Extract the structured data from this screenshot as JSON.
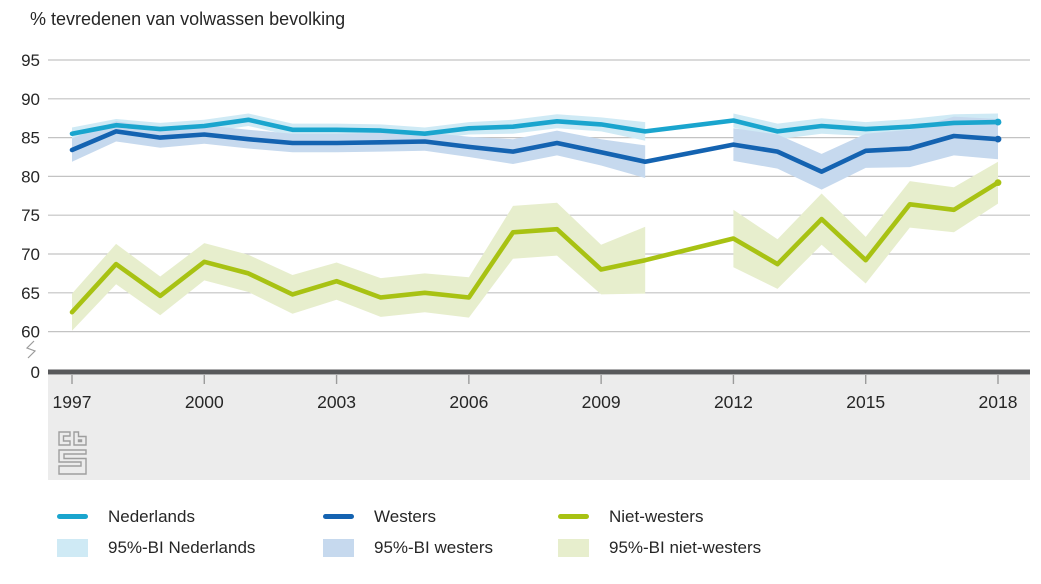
{
  "title": "% tevredenen van volwassen bevolking",
  "colors": {
    "background": "#ffffff",
    "text": "#262626",
    "gridline": "#c3c3c3",
    "baseline": "#58595b",
    "footer_band": "#ececec",
    "tick": "#9b9b9b",
    "logo_gray": "#9e9e9e"
  },
  "chart_data": {
    "type": "line",
    "title": "% tevredenen van volwassen bevolking",
    "x_years": [
      1997,
      1998,
      1999,
      2000,
      2001,
      2002,
      2003,
      2004,
      2005,
      2006,
      2007,
      2008,
      2009,
      2010,
      2012,
      2013,
      2014,
      2015,
      2016,
      2017,
      2018
    ],
    "x_note": "no observation for 2011: lines are interpolated and confidence bands are interrupted between 2010 and 2012",
    "x_tick_years": [
      1997,
      2000,
      2003,
      2006,
      2009,
      2012,
      2015,
      2018
    ],
    "x_tick_labels": [
      "1997",
      "2000",
      "2003",
      "2006",
      "2009",
      "2012",
      "2015",
      "2018"
    ],
    "y_ticks": [
      95,
      90,
      85,
      80,
      75,
      70,
      65,
      60
    ],
    "y_axis_break": true,
    "y_zero_label": "0",
    "ylim_visible": [
      60,
      95
    ],
    "grid": true,
    "legend_position": "bottom",
    "series": [
      {
        "name": "Nederlands",
        "color": "#1aa5ce",
        "band_name": "95%-BI Nederlands",
        "band_color": "#cfeaf5",
        "values": [
          85.5,
          86.6,
          86.1,
          86.5,
          87.3,
          86.0,
          86.0,
          85.9,
          85.5,
          86.2,
          86.4,
          87.1,
          86.7,
          85.8,
          87.2,
          85.8,
          86.5,
          86.1,
          86.4,
          86.9,
          87.0
        ],
        "ci_halfwidth": [
          0.8,
          0.8,
          0.8,
          0.8,
          0.8,
          0.8,
          0.8,
          0.8,
          0.8,
          0.8,
          0.9,
          0.9,
          0.9,
          1.2,
          0.9,
          1.0,
          1.0,
          0.9,
          1.0,
          1.1,
          1.1
        ]
      },
      {
        "name": "Westers",
        "color": "#1463b1",
        "band_name": "95%-BI westers",
        "band_color": "#c6d9ee",
        "values": [
          83.4,
          85.8,
          85.0,
          85.4,
          84.8,
          84.3,
          84.3,
          84.4,
          84.5,
          83.8,
          83.2,
          84.3,
          83.1,
          81.9,
          84.1,
          83.2,
          80.6,
          83.3,
          83.6,
          85.2,
          84.8
        ],
        "ci_halfwidth": [
          1.5,
          1.3,
          1.3,
          1.2,
          1.2,
          1.2,
          1.2,
          1.2,
          1.2,
          1.3,
          1.6,
          1.6,
          1.7,
          2.1,
          2.1,
          2.2,
          2.3,
          2.2,
          2.4,
          2.5,
          2.6
        ]
      },
      {
        "name": "Niet-westers",
        "color": "#a8c213",
        "band_name": "95%-BI niet-westers",
        "band_color": "#e7eecd",
        "values": [
          62.5,
          68.7,
          64.6,
          69.0,
          67.5,
          64.8,
          66.5,
          64.4,
          65.0,
          64.4,
          72.8,
          73.2,
          68.0,
          69.2,
          72.0,
          68.7,
          74.5,
          69.2,
          76.4,
          75.7,
          79.2
        ],
        "ci_halfwidth": [
          2.4,
          2.6,
          2.5,
          2.4,
          2.4,
          2.5,
          2.4,
          2.5,
          2.5,
          2.6,
          3.4,
          3.4,
          3.2,
          4.3,
          3.7,
          3.2,
          3.3,
          3.0,
          3.0,
          2.9,
          2.7
        ]
      }
    ]
  },
  "legend": {
    "rows": [
      [
        {
          "label": "Nederlands"
        },
        {
          "label": "Westers"
        },
        {
          "label": "Niet-westers"
        }
      ],
      [
        {
          "label": "95%-BI Nederlands"
        },
        {
          "label": "95%-BI westers"
        },
        {
          "label": "95%-BI niet-westers"
        }
      ]
    ]
  },
  "logo": {
    "name": "cbs-logo"
  }
}
